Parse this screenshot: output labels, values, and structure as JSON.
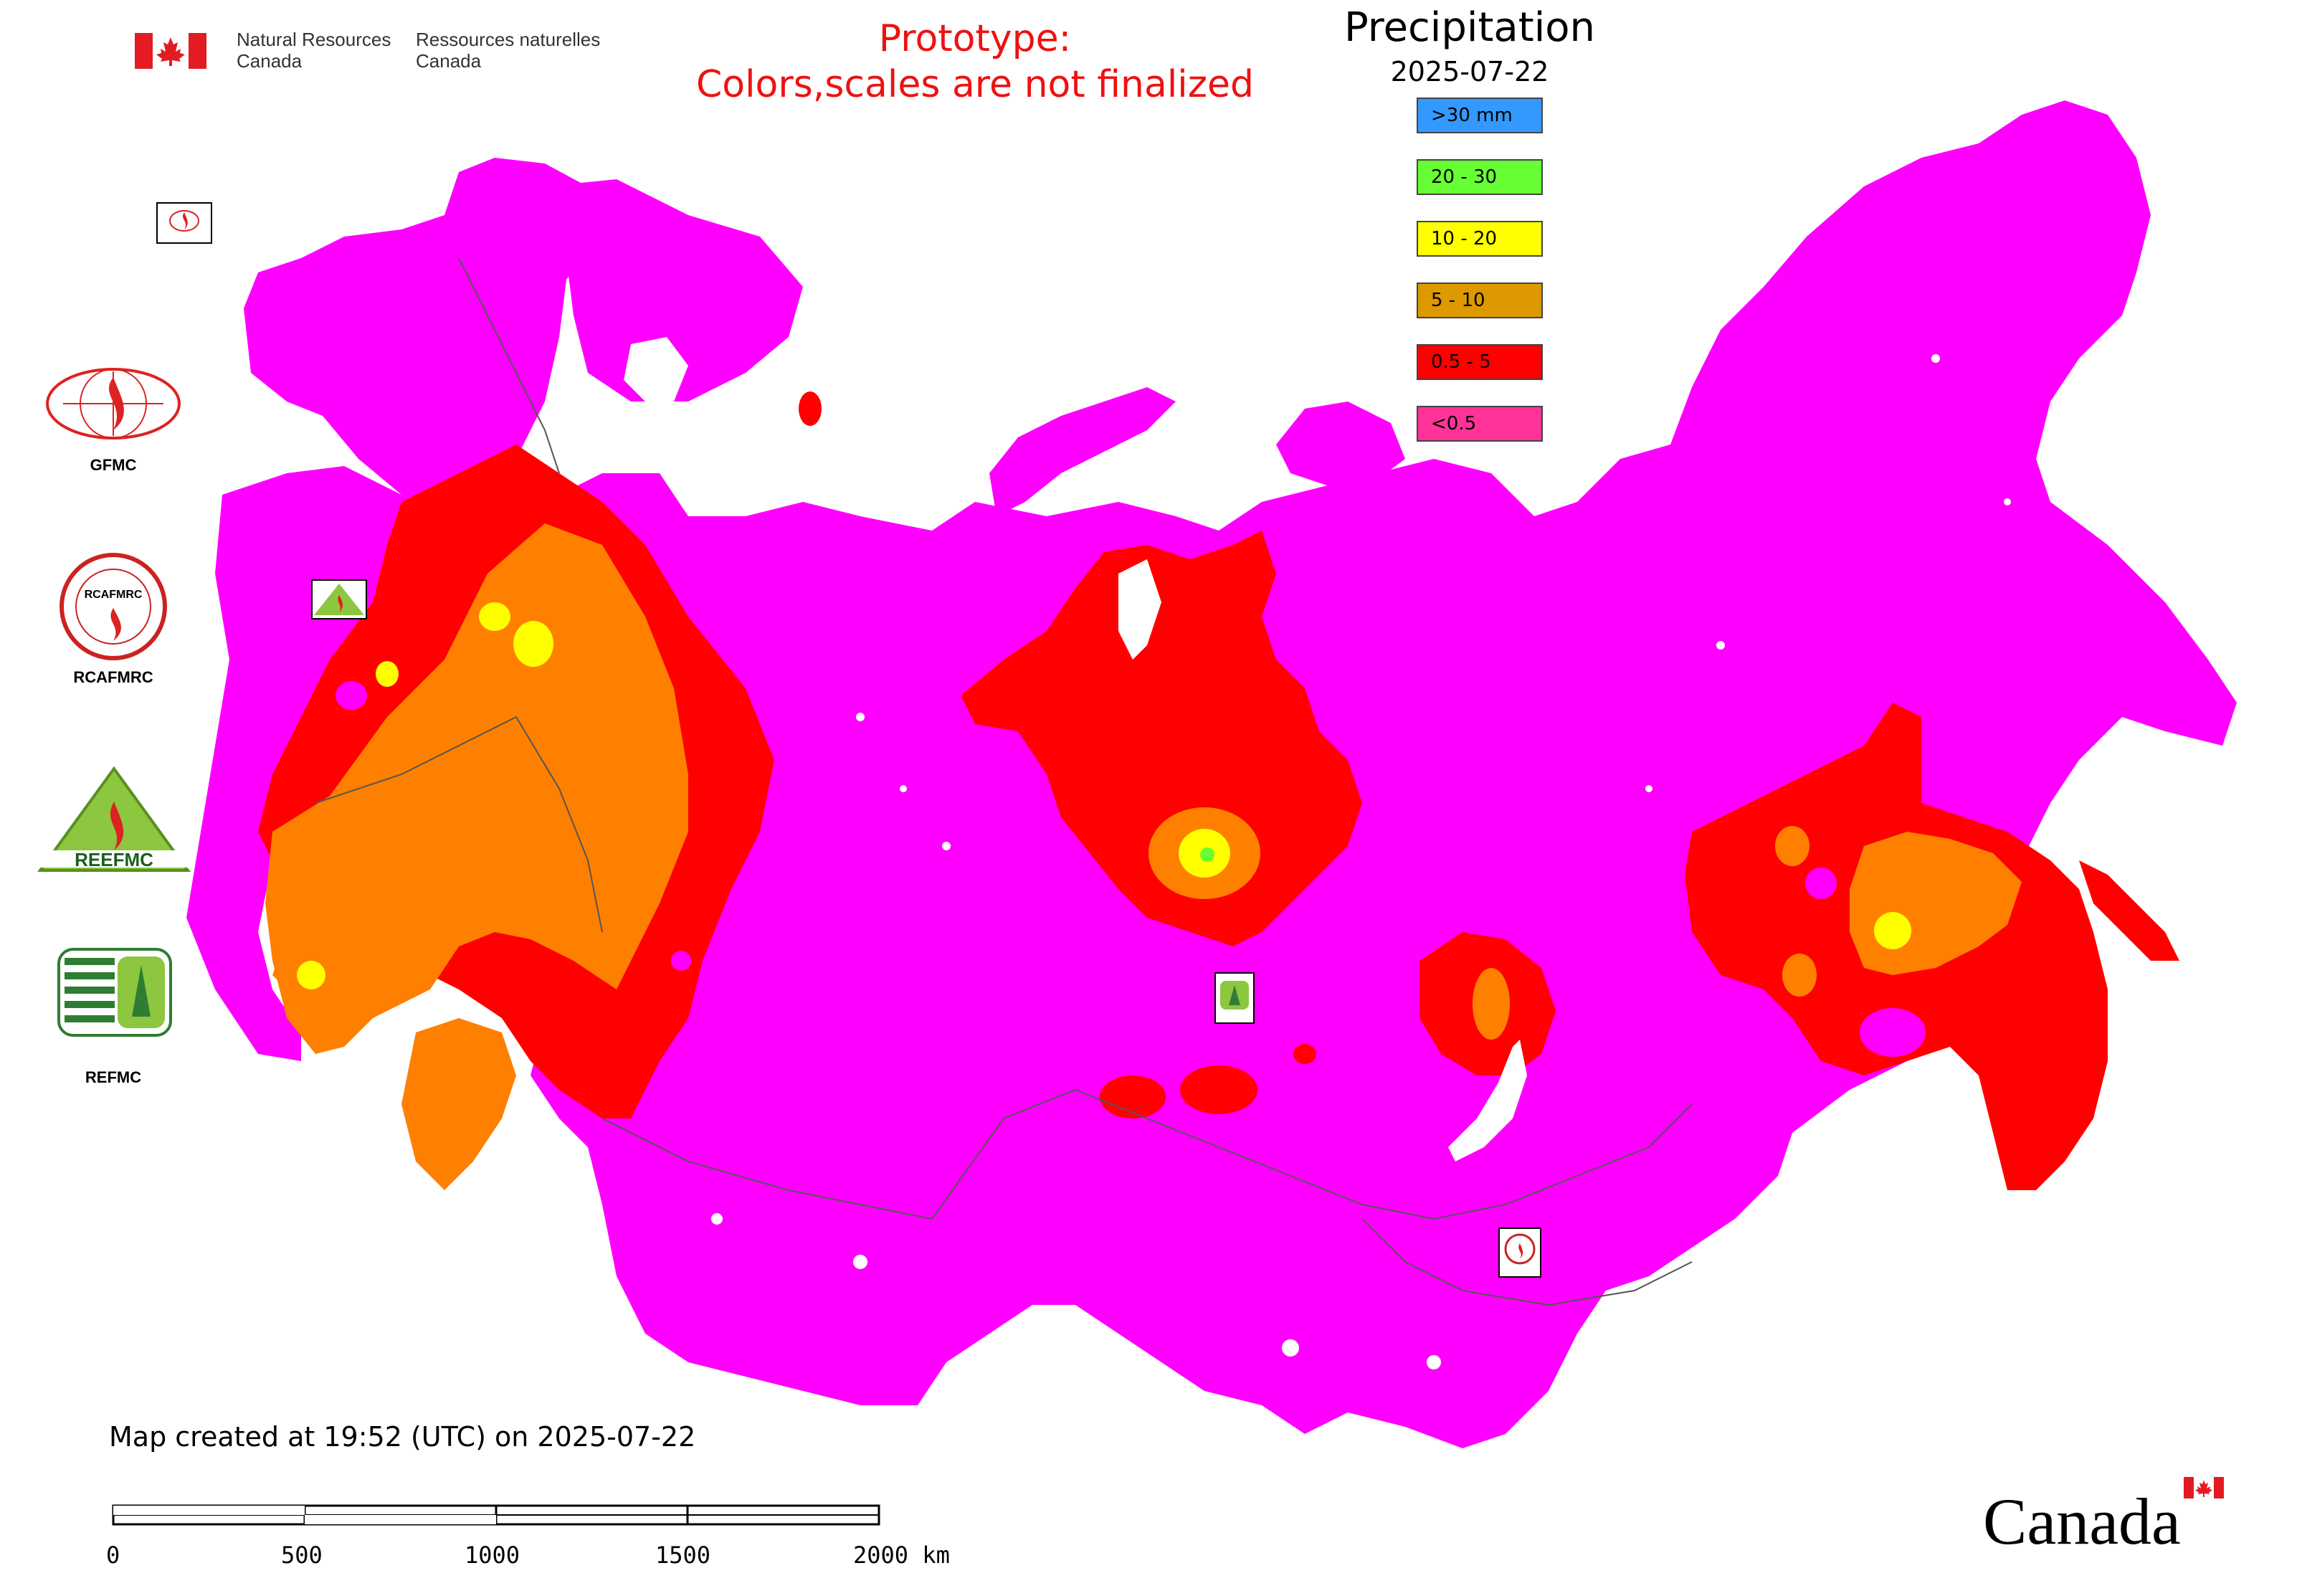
{
  "header": {
    "nrcan_en_line1": "Natural Resources",
    "nrcan_en_line2": "Canada",
    "nrcan_fr_line1": "Ressources naturelles",
    "nrcan_fr_line2": "Canada",
    "notice_line1": "Prototype:",
    "notice_line2": "Colors,scales are not finalized"
  },
  "legend": {
    "title": "Precipitation",
    "date": "2025-07-22",
    "items": [
      {
        "label": ">30 mm",
        "color": "#3399ff"
      },
      {
        "label": "20 - 30",
        "color": "#66ff33"
      },
      {
        "label": "10 - 20",
        "color": "#ffff00"
      },
      {
        "label": "5 - 10",
        "color": "#dd9900"
      },
      {
        "label": "0.5 - 5",
        "color": "#ff0000"
      },
      {
        "label": "<0.5",
        "color": "#ff3399"
      }
    ]
  },
  "map_colors": {
    "lt_0_5": "#ff00ff",
    "r_0_5_5": "#ff0000",
    "r_5_10": "#ff8000",
    "r_10_20": "#ffff00",
    "r_20_30": "#66ff33"
  },
  "logos": {
    "gfmc": "GFMC",
    "rcafmrc": "RCAFMRC",
    "reefmc": "REFMC",
    "reefmc_mark": "REEFMC",
    "rcafmrc_mark": "RCAFMRC"
  },
  "footer": {
    "created": "Map created at 19:52 (UTC) on 2025-07-22",
    "scale_ticks": [
      "0",
      "500",
      "1000",
      "1500",
      "2000 km"
    ],
    "wordmark": "Canada"
  }
}
